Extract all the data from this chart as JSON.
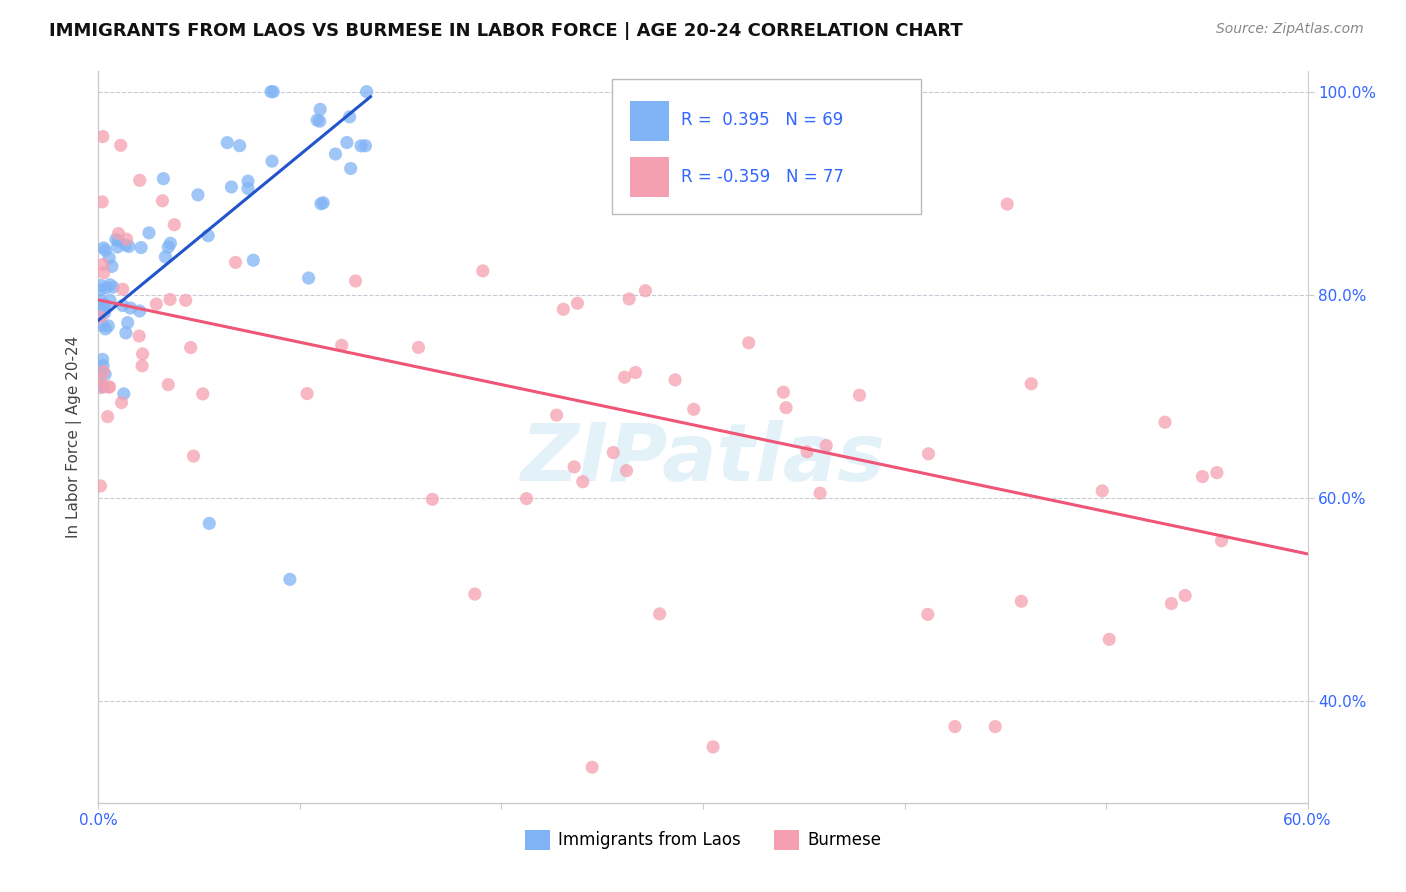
{
  "title": "IMMIGRANTS FROM LAOS VS BURMESE IN LABOR FORCE | AGE 20-24 CORRELATION CHART",
  "source": "Source: ZipAtlas.com",
  "ylabel": "In Labor Force | Age 20-24",
  "x_min": 0.0,
  "x_max": 0.6,
  "y_min": 0.3,
  "y_max": 1.02,
  "x_ticks": [
    0.0,
    0.1,
    0.2,
    0.3,
    0.4,
    0.5,
    0.6
  ],
  "y_ticks": [
    0.4,
    0.6,
    0.8,
    1.0
  ],
  "y_tick_labels": [
    "40.0%",
    "60.0%",
    "80.0%",
    "100.0%"
  ],
  "legend_laos": "Immigrants from Laos",
  "legend_burmese": "Burmese",
  "R_laos": 0.395,
  "N_laos": 69,
  "R_burmese": -0.359,
  "N_burmese": 77,
  "color_laos": "#7FB3F5",
  "color_burmese": "#F5A0B0",
  "color_laos_line": "#2255CC",
  "color_burmese_line": "#EE5577",
  "watermark": "ZIPatlas",
  "laos_trend_x0": 0.0,
  "laos_trend_y0": 0.775,
  "laos_trend_x1": 0.135,
  "laos_trend_y1": 0.995,
  "burmese_trend_x0": 0.0,
  "burmese_trend_y0": 0.795,
  "burmese_trend_x1": 0.6,
  "burmese_trend_y1": 0.545
}
